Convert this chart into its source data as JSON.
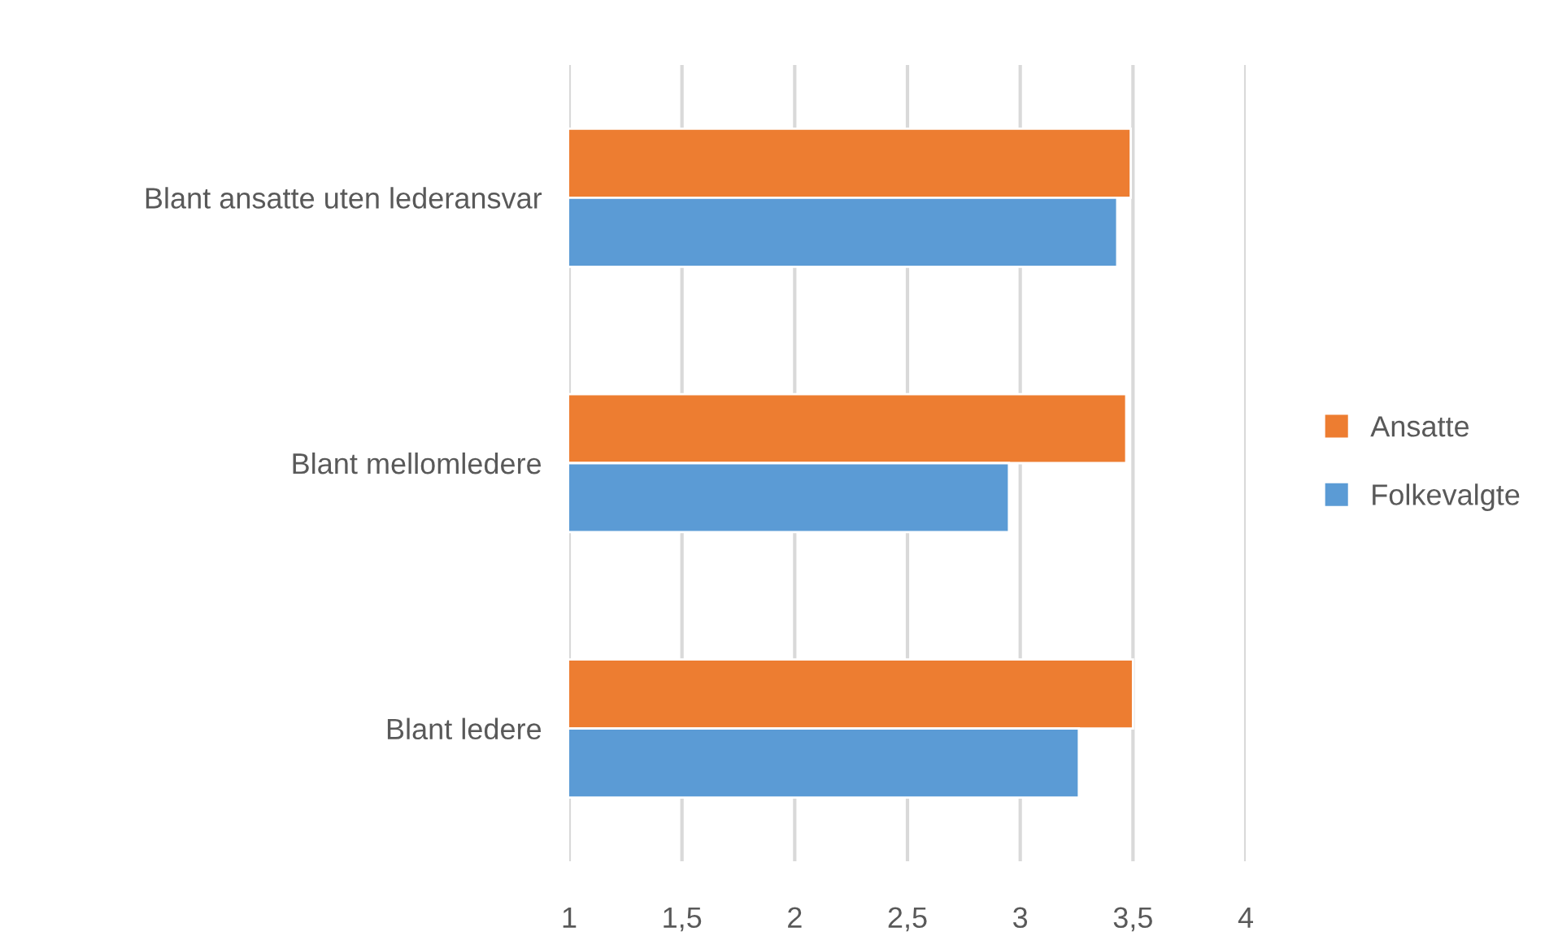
{
  "chart_data": {
    "type": "bar",
    "orientation": "horizontal",
    "categories": [
      "Blant ansatte uten lederansvar",
      "Blant mellomledere",
      "Blant ledere"
    ],
    "series": [
      {
        "name": "Ansatte",
        "color": "#ed7d31",
        "values": [
          3.49,
          3.47,
          3.5
        ]
      },
      {
        "name": "Folkevalgte",
        "color": "#5b9bd5",
        "values": [
          3.43,
          2.95,
          3.26
        ]
      }
    ],
    "xlim": [
      1,
      4
    ],
    "xticks": [
      1,
      {
        "value": 1.5,
        "label": "1,5"
      },
      2,
      {
        "value": 2.5,
        "label": "2,5"
      },
      3,
      {
        "value": 3.5,
        "label": "3,5"
      },
      4
    ],
    "grid": "x",
    "legend": "right"
  }
}
